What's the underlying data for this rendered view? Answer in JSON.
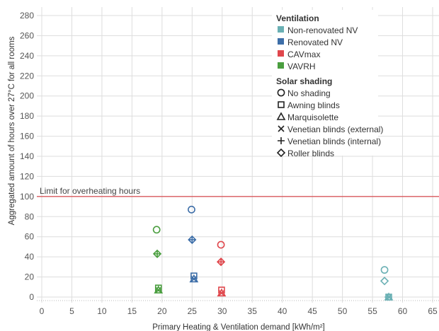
{
  "chart_data": {
    "type": "scatter",
    "xlabel": "Primary Heating  & Ventilation demand [kWh/m²]",
    "ylabel": "Aggregated amount of hours over 27°C for all rooms",
    "xlim": [
      0,
      66
    ],
    "ylim": [
      -6,
      284
    ],
    "x_ticks": [
      0,
      5,
      10,
      15,
      20,
      25,
      30,
      35,
      40,
      45,
      50,
      55,
      60,
      65
    ],
    "y_ticks": [
      0,
      20,
      40,
      60,
      80,
      100,
      120,
      140,
      160,
      180,
      200,
      220,
      240,
      260,
      280
    ],
    "grid": true,
    "legend_placement": "top-right",
    "reference_line": {
      "y": 100,
      "label": "Limit for overheating hours",
      "color": "#d9585c"
    },
    "legends": [
      {
        "title": "Ventilation",
        "kind": "color",
        "entries": [
          {
            "label": "Non-renovated NV",
            "color": "#6ab0b4"
          },
          {
            "label": "Renovated NV",
            "color": "#3d6ea8"
          },
          {
            "label": "CAVmax",
            "color": "#e0474c"
          },
          {
            "label": "VAVRH",
            "color": "#4a9e3f"
          }
        ]
      },
      {
        "title": "Solar shading",
        "kind": "shape",
        "entries": [
          {
            "label": "No shading",
            "shape": "circle"
          },
          {
            "label": "Awning blinds",
            "shape": "square"
          },
          {
            "label": "Marquisolette",
            "shape": "triangle"
          },
          {
            "label": "Venetian blinds (external)",
            "shape": "cross"
          },
          {
            "label": "Venetian blinds (internal)",
            "shape": "plus"
          },
          {
            "label": "Roller blinds",
            "shape": "diamond"
          }
        ]
      }
    ],
    "points": [
      {
        "ventilation": "Non-renovated NV",
        "shading": "No shading",
        "x": 57.0,
        "y": 27
      },
      {
        "ventilation": "Non-renovated NV",
        "shading": "Roller blinds",
        "x": 57.0,
        "y": 16
      },
      {
        "ventilation": "Non-renovated NV",
        "shading": "Awning blinds",
        "x": 57.7,
        "y": 0
      },
      {
        "ventilation": "Non-renovated NV",
        "shading": "Marquisolette",
        "x": 57.7,
        "y": 0
      },
      {
        "ventilation": "Non-renovated NV",
        "shading": "Venetian blinds (external)",
        "x": 57.7,
        "y": 0
      },
      {
        "ventilation": "Non-renovated NV",
        "shading": "Venetian blinds (internal)",
        "x": 57.6,
        "y": 0
      },
      {
        "ventilation": "Renovated NV",
        "shading": "No shading",
        "x": 24.9,
        "y": 87
      },
      {
        "ventilation": "Renovated NV",
        "shading": "Roller blinds",
        "x": 25.0,
        "y": 57
      },
      {
        "ventilation": "Renovated NV",
        "shading": "Venetian blinds (internal)",
        "x": 25.0,
        "y": 57
      },
      {
        "ventilation": "Renovated NV",
        "shading": "Awning blinds",
        "x": 25.3,
        "y": 21
      },
      {
        "ventilation": "Renovated NV",
        "shading": "Marquisolette",
        "x": 25.3,
        "y": 18
      },
      {
        "ventilation": "Renovated NV",
        "shading": "Venetian blinds (external)",
        "x": 25.3,
        "y": 18
      },
      {
        "ventilation": "CAVmax",
        "shading": "No shading",
        "x": 29.8,
        "y": 52
      },
      {
        "ventilation": "CAVmax",
        "shading": "Roller blinds",
        "x": 29.8,
        "y": 35
      },
      {
        "ventilation": "CAVmax",
        "shading": "Venetian blinds (internal)",
        "x": 29.8,
        "y": 35
      },
      {
        "ventilation": "CAVmax",
        "shading": "Awning blinds",
        "x": 29.9,
        "y": 7
      },
      {
        "ventilation": "CAVmax",
        "shading": "Marquisolette",
        "x": 29.9,
        "y": 4
      },
      {
        "ventilation": "CAVmax",
        "shading": "Venetian blinds (external)",
        "x": 29.9,
        "y": 4
      },
      {
        "ventilation": "VAVRH",
        "shading": "No shading",
        "x": 19.1,
        "y": 67
      },
      {
        "ventilation": "VAVRH",
        "shading": "Roller blinds",
        "x": 19.2,
        "y": 43
      },
      {
        "ventilation": "VAVRH",
        "shading": "Venetian blinds (internal)",
        "x": 19.2,
        "y": 43
      },
      {
        "ventilation": "VAVRH",
        "shading": "Awning blinds",
        "x": 19.4,
        "y": 9
      },
      {
        "ventilation": "VAVRH",
        "shading": "Marquisolette",
        "x": 19.4,
        "y": 7
      },
      {
        "ventilation": "VAVRH",
        "shading": "Venetian blinds (external)",
        "x": 19.4,
        "y": 7
      }
    ]
  }
}
